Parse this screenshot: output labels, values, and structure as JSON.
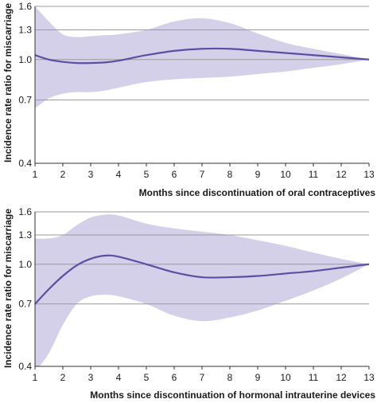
{
  "colors": {
    "band": "#d5d0ea",
    "line": "#5b4fa3",
    "grid": "#9a9a9a",
    "axis": "#333333"
  },
  "chart_data": [
    {
      "type": "line",
      "title": "",
      "xlabel": "Months since discontinuation of oral contraceptives",
      "ylabel": "Incidence rate ratio for miscarriage",
      "xlim": [
        1,
        13
      ],
      "ylim": [
        0.4,
        1.6
      ],
      "log_y": true,
      "x_ticks": [
        1,
        2,
        3,
        4,
        5,
        6,
        7,
        8,
        9,
        10,
        11,
        12,
        13
      ],
      "y_ticks": [
        0.4,
        0.7,
        1.0,
        1.3,
        1.6
      ],
      "y_tick_labels": [
        "0.4",
        "0.7",
        "1.0",
        "1.3",
        "1.6"
      ],
      "grid": "horizontal",
      "x": [
        1,
        1.5,
        2,
        2.5,
        3,
        3.5,
        4,
        5,
        6,
        7,
        8,
        9,
        10,
        11,
        12,
        13
      ],
      "series": [
        {
          "role": "estimate",
          "values": [
            1.04,
            1.0,
            0.98,
            0.97,
            0.97,
            0.975,
            0.99,
            1.04,
            1.08,
            1.1,
            1.1,
            1.08,
            1.06,
            1.04,
            1.02,
            1.0
          ]
        },
        {
          "role": "upper",
          "values": [
            1.6,
            1.4,
            1.25,
            1.22,
            1.23,
            1.24,
            1.25,
            1.3,
            1.4,
            1.44,
            1.38,
            1.26,
            1.16,
            1.1,
            1.05,
            1.0
          ]
        },
        {
          "role": "lower",
          "values": [
            0.65,
            0.71,
            0.74,
            0.75,
            0.75,
            0.76,
            0.78,
            0.82,
            0.84,
            0.85,
            0.86,
            0.88,
            0.9,
            0.93,
            0.96,
            1.0
          ]
        }
      ]
    },
    {
      "type": "line",
      "title": "",
      "xlabel": "Months since discontinuation of hormonal intrauterine devices",
      "ylabel": "Incidence rate ratio for miscarriage",
      "xlim": [
        1,
        13
      ],
      "ylim": [
        0.4,
        1.6
      ],
      "log_y": true,
      "x_ticks": [
        1,
        2,
        3,
        4,
        5,
        6,
        7,
        8,
        9,
        10,
        11,
        12,
        13
      ],
      "y_ticks": [
        0.4,
        0.7,
        1.0,
        1.3,
        1.6
      ],
      "y_tick_labels": [
        "0.4",
        "0.7",
        "1.0",
        "1.3",
        "1.6"
      ],
      "grid": "horizontal",
      "x": [
        1,
        1.5,
        2,
        2.5,
        3,
        3.5,
        4,
        5,
        6,
        7,
        8,
        9,
        10,
        11,
        12,
        13
      ],
      "series": [
        {
          "role": "estimate",
          "values": [
            0.7,
            0.8,
            0.9,
            0.99,
            1.05,
            1.08,
            1.07,
            1.0,
            0.93,
            0.89,
            0.89,
            0.9,
            0.92,
            0.94,
            0.97,
            1.0
          ]
        },
        {
          "role": "upper",
          "values": [
            1.26,
            1.26,
            1.3,
            1.42,
            1.52,
            1.56,
            1.55,
            1.44,
            1.38,
            1.34,
            1.3,
            1.24,
            1.18,
            1.11,
            1.05,
            1.0
          ]
        },
        {
          "role": "lower",
          "values": [
            0.38,
            0.45,
            0.58,
            0.7,
            0.75,
            0.76,
            0.75,
            0.7,
            0.63,
            0.6,
            0.62,
            0.66,
            0.72,
            0.79,
            0.88,
            1.0
          ]
        }
      ]
    }
  ]
}
